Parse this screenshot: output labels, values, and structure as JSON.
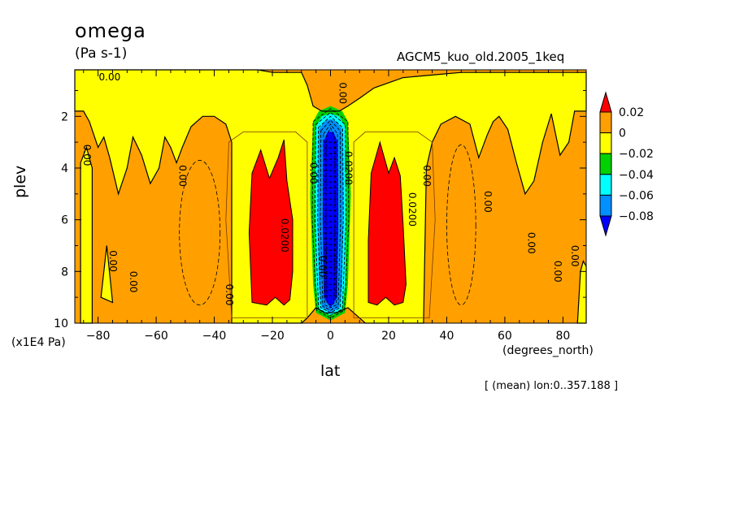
{
  "title": "omega",
  "units": "(Pa s-1)",
  "dataset": "AGCM5_kuo_old.2005_1keq",
  "xlabel": "lat",
  "xunit": "(degrees_north)",
  "ylabel": "plev",
  "yunit": "(x1E4 Pa)",
  "footnote": "[ (mean) lon:0..357.188 ]",
  "chart_data": {
    "type": "heatmap",
    "x": {
      "label": "lat",
      "range": [
        -88,
        88
      ],
      "ticks": [
        -80,
        -60,
        -40,
        -20,
        0,
        20,
        40,
        60,
        80
      ]
    },
    "y": {
      "label": "plev",
      "range": [
        0.2,
        10
      ],
      "reversed": true,
      "ticks": [
        2,
        4,
        6,
        8,
        10
      ]
    },
    "colorbar": {
      "levels": [
        "0.02",
        "0",
        "−0.02",
        "−0.04",
        "−0.06",
        "−0.08"
      ],
      "colors": [
        "#ff0000",
        "#ffa000",
        "#ffff00",
        "#00d200",
        "#00ffff",
        "#0090ff",
        "#0000ff"
      ]
    },
    "contour_labels": [
      {
        "text": "0.00",
        "lat": -76,
        "p": 0.5
      },
      {
        "text": "0.00",
        "lat": 4,
        "p": 1.1
      },
      {
        "text": "0.00",
        "lat": -84,
        "p": 3.5
      },
      {
        "text": "0.00",
        "lat": -51,
        "p": 4.3
      },
      {
        "text": "0.00",
        "lat": -75,
        "p": 7.6
      },
      {
        "text": "0.00",
        "lat": -68,
        "p": 8.4
      },
      {
        "text": "0.00",
        "lat": -35,
        "p": 8.9
      },
      {
        "text": "0.00",
        "lat": -6,
        "p": 4.2
      },
      {
        "text": "0.0200",
        "lat": -16,
        "p": 6.6
      },
      {
        "text": "0.0200",
        "lat": 28,
        "p": 5.6
      },
      {
        "text": "0.00",
        "lat": 33,
        "p": 4.3
      },
      {
        "text": "0.00",
        "lat": 54,
        "p": 5.3
      },
      {
        "text": "0.00",
        "lat": 69,
        "p": 6.9
      },
      {
        "text": "0.00",
        "lat": 78,
        "p": 8.0
      },
      {
        "text": "0.00",
        "lat": 84,
        "p": 7.4
      },
      {
        "text": "0.0200",
        "lat": 6,
        "p": 4.0
      },
      {
        "text": "0.00",
        "lat": -3,
        "p": 7.8
      }
    ]
  }
}
